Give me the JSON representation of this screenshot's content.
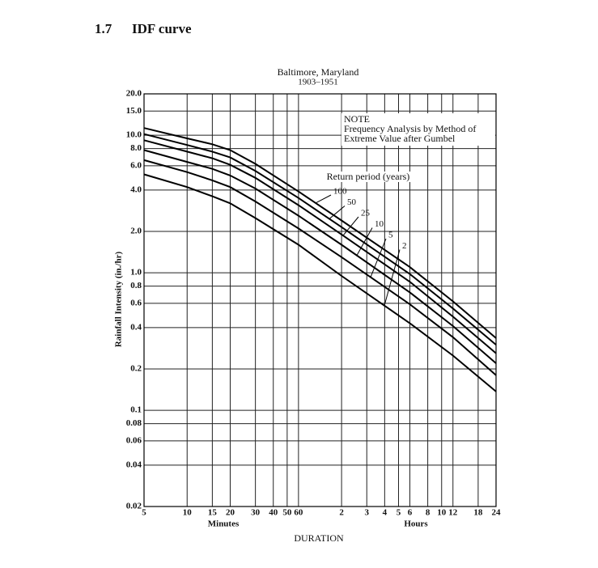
{
  "section": {
    "number": "1.7",
    "title": "IDF curve"
  },
  "chart_data": {
    "type": "line",
    "title": "Baltimore, Maryland",
    "subtitle": "1903–1951",
    "ylabel": "Rainfall Intensity (in./hr)",
    "xlabel": "DURATION",
    "xlabel_minutes": "Minutes",
    "xlabel_hours": "Hours",
    "annotations": {
      "note": "NOTE",
      "note_line1": "Frequency Analysis by Method of",
      "note_line2": "Extreme Value after Gumbel",
      "return_period": "Return period (years)"
    },
    "xscale": "log",
    "yscale": "log",
    "grid": true,
    "xlim": [
      5,
      1440
    ],
    "ylim": [
      0.02,
      20
    ],
    "xticks": [
      5,
      10,
      15,
      20,
      30,
      40,
      50,
      60,
      {
        "value": 120,
        "label": "2"
      },
      {
        "value": 180,
        "label": "3"
      },
      {
        "value": 240,
        "label": "4"
      },
      {
        "value": 300,
        "label": "5"
      },
      {
        "value": 360,
        "label": "6"
      },
      {
        "value": 480,
        "label": "8"
      },
      {
        "value": 600,
        "label": "10"
      },
      {
        "value": 720,
        "label": "12"
      },
      {
        "value": 1080,
        "label": "18"
      },
      {
        "value": 1440,
        "label": "24"
      }
    ],
    "yticks": [
      0.02,
      0.04,
      0.06,
      0.08,
      0.1,
      0.2,
      0.4,
      0.6,
      0.8,
      {
        "value": 1,
        "label": "1.0"
      },
      {
        "value": 2,
        "label": "2.0"
      },
      {
        "value": 4,
        "label": "4.0"
      },
      {
        "value": 6,
        "label": "6.0"
      },
      {
        "value": 8,
        "label": "8.0"
      },
      {
        "value": 10,
        "label": "10.0"
      },
      {
        "value": 15,
        "label": "15.0"
      },
      {
        "value": 20,
        "label": "20.0"
      }
    ],
    "x": [
      5,
      10,
      15,
      20,
      30,
      60,
      120,
      360,
      720,
      1440
    ],
    "series": [
      {
        "name": "100",
        "color": "#000000",
        "values": [
          11.3,
          9.5,
          8.6,
          7.8,
          6.2,
          3.9,
          2.4,
          1.1,
          0.62,
          0.335
        ]
      },
      {
        "name": "50",
        "color": "#000000",
        "values": [
          10.2,
          8.5,
          7.6,
          6.9,
          5.5,
          3.5,
          2.15,
          0.98,
          0.55,
          0.3
        ]
      },
      {
        "name": "25",
        "color": "#000000",
        "values": [
          9.2,
          7.6,
          6.8,
          6.1,
          4.9,
          3.1,
          1.9,
          0.86,
          0.48,
          0.26
        ]
      },
      {
        "name": "10",
        "color": "#000000",
        "values": [
          7.8,
          6.4,
          5.7,
          5.1,
          4.1,
          2.6,
          1.6,
          0.72,
          0.41,
          0.22
        ]
      },
      {
        "name": "5",
        "color": "#000000",
        "values": [
          6.6,
          5.4,
          4.7,
          4.2,
          3.3,
          2.1,
          1.3,
          0.59,
          0.34,
          0.18
        ]
      },
      {
        "name": "2",
        "color": "#000000",
        "values": [
          5.2,
          4.2,
          3.6,
          3.2,
          2.5,
          1.6,
          0.95,
          0.43,
          0.25,
          0.137
        ]
      }
    ]
  }
}
